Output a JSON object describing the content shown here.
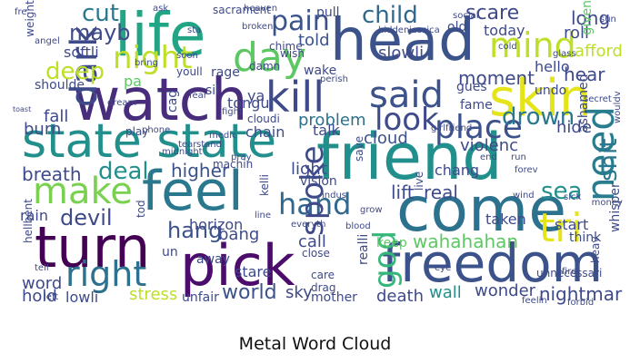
{
  "caption": "Metal Word Cloud",
  "colors": {
    "background": "#ffffff",
    "dark_purple": "#440154",
    "indigo": "#3b528b",
    "teal": "#21908d",
    "green": "#5dc863",
    "yellow": "#e5e419"
  },
  "words": [
    {
      "text": "head",
      "color": "#3b528b"
    },
    {
      "text": "friend",
      "color": "#21908d"
    },
    {
      "text": "watch",
      "color": "#472d7b"
    },
    {
      "text": "life",
      "color": "#21a585"
    },
    {
      "text": "state state",
      "color": "#21908d"
    },
    {
      "text": "come",
      "color": "#2c728e"
    },
    {
      "text": "feel",
      "color": "#2a788e"
    },
    {
      "text": "turn",
      "color": "#440154"
    },
    {
      "text": "pick",
      "color": "#4b0c6b"
    },
    {
      "text": "freedom",
      "color": "#3b528b"
    },
    {
      "text": "skin",
      "color": "#e5e419"
    },
    {
      "text": "kill",
      "color": "#3e4a89"
    },
    {
      "text": "mind",
      "color": "#bddf26"
    },
    {
      "text": "day",
      "color": "#5dc863"
    },
    {
      "text": "night",
      "color": "#bddf26"
    },
    {
      "text": "said",
      "color": "#3b528b"
    },
    {
      "text": "dark",
      "color": "#3e4a89"
    },
    {
      "text": "make",
      "color": "#7ad151"
    },
    {
      "text": "right",
      "color": "#2c728e"
    },
    {
      "text": "god",
      "color": "#35b779"
    },
    {
      "text": "need",
      "color": "#287c8e"
    },
    {
      "text": "tri",
      "color": "#e5e419"
    },
    {
      "text": "place",
      "color": "#3b528b"
    },
    {
      "text": "look",
      "color": "#3e4a89"
    },
    {
      "text": "hand",
      "color": "#31688e"
    },
    {
      "text": "spoke",
      "color": "#3e4a89"
    },
    {
      "text": "pain",
      "color": "#3b528b"
    },
    {
      "text": "child",
      "color": "#31688e"
    },
    {
      "text": "drown",
      "color": "#2a788e"
    },
    {
      "text": "cut",
      "color": "#2a788e"
    },
    {
      "text": "mayb",
      "color": "#3e4a89"
    },
    {
      "text": "deep",
      "color": "#bddf26"
    },
    {
      "text": "devil",
      "color": "#3e4a89"
    },
    {
      "text": "hang",
      "color": "#3b528b"
    },
    {
      "text": "wahahahan",
      "color": "#5dc863"
    },
    {
      "text": "sea",
      "color": "#21908d"
    },
    {
      "text": "shit",
      "color": "#2a788e"
    },
    {
      "text": "deal",
      "color": "#21908d"
    },
    {
      "text": "breath",
      "color": "#3e4a89"
    },
    {
      "text": "told",
      "color": "#3b528b"
    },
    {
      "text": "problem",
      "color": "#2c728e"
    },
    {
      "text": "cloud",
      "color": "#3b528b"
    },
    {
      "text": "light",
      "color": "#3e4a89"
    },
    {
      "text": "higher",
      "color": "#3b528b"
    },
    {
      "text": "real",
      "color": "#3e4a89"
    },
    {
      "text": "lift",
      "color": "#3e4a89"
    },
    {
      "text": "world",
      "color": "#3b528b"
    },
    {
      "text": "stress",
      "color": "#bddf26"
    },
    {
      "text": "wall",
      "color": "#21908d"
    },
    {
      "text": "wonder",
      "color": "#3e4a89"
    },
    {
      "text": "death",
      "color": "#3e4a89"
    },
    {
      "text": "nightmar",
      "color": "#3e4a89"
    },
    {
      "text": "hide",
      "color": "#3e4a89"
    },
    {
      "text": "hear",
      "color": "#3e4a89"
    },
    {
      "text": "moment",
      "color": "#3e4a89"
    },
    {
      "text": "scare",
      "color": "#3e4a89"
    },
    {
      "text": "long",
      "color": "#3e4a89"
    },
    {
      "text": "roll",
      "color": "#3e4a89"
    },
    {
      "text": "afford",
      "color": "#bddf26"
    },
    {
      "text": "given",
      "color": "#5dc863"
    },
    {
      "text": "hello",
      "color": "#3e4a89"
    },
    {
      "text": "fall",
      "color": "#3e4a89"
    },
    {
      "text": "burn",
      "color": "#3e4a89"
    },
    {
      "text": "talk",
      "color": "#3e4a89"
    },
    {
      "text": "bang",
      "color": "#3e4a89"
    },
    {
      "text": "call",
      "color": "#3e4a89"
    },
    {
      "text": "stare",
      "color": "#3e4a89"
    },
    {
      "text": "sky",
      "color": "#3e4a89"
    },
    {
      "text": "word",
      "color": "#3e4a89"
    },
    {
      "text": "hold",
      "color": "#3e4a89"
    },
    {
      "text": "lowli",
      "color": "#3e4a89"
    },
    {
      "text": "rain",
      "color": "#3e4a89"
    },
    {
      "text": "horizon",
      "color": "#3e4a89"
    },
    {
      "text": "chang",
      "color": "#3e4a89"
    },
    {
      "text": "taken",
      "color": "#3e4a89"
    },
    {
      "text": "start",
      "color": "#3e4a89"
    },
    {
      "text": "think",
      "color": "#3e4a89"
    },
    {
      "text": "whisper",
      "color": "#3e4a89"
    },
    {
      "text": "violenc",
      "color": "#3e4a89"
    },
    {
      "text": "chain",
      "color": "#3e4a89"
    },
    {
      "text": "vision",
      "color": "#3e4a89"
    },
    {
      "text": "keep",
      "color": "#5dc863"
    },
    {
      "text": "unfair",
      "color": "#3e4a89"
    },
    {
      "text": "mother",
      "color": "#3e4a89"
    },
    {
      "text": "slowli",
      "color": "#3e4a89"
    },
    {
      "text": "today",
      "color": "#3e4a89"
    },
    {
      "text": "pull",
      "color": "#3e4a89"
    },
    {
      "text": "tongu",
      "color": "#3e4a89"
    },
    {
      "text": "rage",
      "color": "#3e4a89"
    },
    {
      "text": "wake",
      "color": "#3e4a89"
    },
    {
      "text": "softli",
      "color": "#3e4a89"
    },
    {
      "text": "old",
      "color": "#3e4a89"
    },
    {
      "text": "fame",
      "color": "#3e4a89"
    },
    {
      "text": "ya",
      "color": "#3e4a89"
    },
    {
      "text": "sil",
      "color": "#3e4a89"
    },
    {
      "text": "pa",
      "color": "#5dc863"
    },
    {
      "text": "cag",
      "color": "#3e4a89"
    },
    {
      "text": "drag",
      "color": "#3e4a89"
    },
    {
      "text": "care",
      "color": "#3e4a89"
    },
    {
      "text": "close",
      "color": "#3e4a89"
    },
    {
      "text": "away",
      "color": "#3e4a89"
    },
    {
      "text": "un",
      "color": "#3e4a89"
    },
    {
      "text": "tod",
      "color": "#3e4a89"
    },
    {
      "text": "save",
      "color": "#3e4a89"
    },
    {
      "text": "realli",
      "color": "#3e4a89"
    },
    {
      "text": "sacrament",
      "color": "#3e4a89"
    },
    {
      "text": "shoulde",
      "color": "#3e4a89"
    },
    {
      "text": "weight",
      "color": "#3e4a89"
    },
    {
      "text": "undo",
      "color": "#3e4a89"
    },
    {
      "text": "gues",
      "color": "#3e4a89"
    },
    {
      "text": "ashamed",
      "color": "#3e4a89"
    },
    {
      "text": "money",
      "color": "#3e4a89"
    },
    {
      "text": "heav",
      "color": "#3e4a89"
    },
    {
      "text": "hellbent",
      "color": "#3e4a89"
    },
    {
      "text": "tell",
      "color": "#3e4a89"
    },
    {
      "text": "play",
      "color": "#3e4a89"
    },
    {
      "text": "youll",
      "color": "#3e4a89"
    },
    {
      "text": "damn",
      "color": "#3e4a89"
    },
    {
      "text": "chime",
      "color": "#3e4a89"
    },
    {
      "text": "wish",
      "color": "#3e4a89"
    },
    {
      "text": "soon",
      "color": "#3e4a89"
    },
    {
      "text": "machin",
      "color": "#3e4a89"
    },
    {
      "text": "cloudi",
      "color": "#3e4a89"
    },
    {
      "text": "live",
      "color": "#3e4a89"
    },
    {
      "text": "wouldv",
      "color": "#3e4a89"
    },
    {
      "text": "unnecessari",
      "color": "#3e4a89"
    },
    {
      "text": "sick",
      "color": "#3e4a89"
    },
    {
      "text": "forbid",
      "color": "#3e4a89"
    },
    {
      "text": "social",
      "color": "#3e4a89"
    },
    {
      "text": "hidden",
      "color": "#3e4a89"
    },
    {
      "text": "jessica",
      "color": "#3e4a89"
    },
    {
      "text": "fre",
      "color": "#3e4a89"
    },
    {
      "text": "ask",
      "color": "#3e4a89"
    },
    {
      "text": "angel",
      "color": "#3e4a89"
    },
    {
      "text": "sta",
      "color": "#3e4a89"
    },
    {
      "text": "broken",
      "color": "#3e4a89"
    },
    {
      "text": "heaven",
      "color": "#3e4a89"
    },
    {
      "text": "bring",
      "color": "#3e4a89"
    },
    {
      "text": "toast",
      "color": "#3e4a89"
    },
    {
      "text": "cold",
      "color": "#3e4a89"
    },
    {
      "text": "sun",
      "color": "#3e4a89"
    },
    {
      "text": "glass",
      "color": "#3e4a89"
    },
    {
      "text": "fight",
      "color": "#3e4a89"
    },
    {
      "text": "grow",
      "color": "#3e4a89"
    },
    {
      "text": "blood",
      "color": "#3e4a89"
    },
    {
      "text": "dream",
      "color": "#3e4a89"
    },
    {
      "text": "tear",
      "color": "#3e4a89"
    },
    {
      "text": "stand",
      "color": "#3e4a89"
    },
    {
      "text": "end",
      "color": "#3e4a89"
    },
    {
      "text": "run",
      "color": "#3e4a89"
    },
    {
      "text": "wind",
      "color": "#3e4a89"
    },
    {
      "text": "fire",
      "color": "#3e4a89"
    },
    {
      "text": "eye",
      "color": "#3e4a89"
    },
    {
      "text": "fear",
      "color": "#3e4a89"
    },
    {
      "text": "phone",
      "color": "#3e4a89"
    },
    {
      "text": "midnight",
      "color": "#3e4a89"
    },
    {
      "text": "medic",
      "color": "#3e4a89"
    },
    {
      "text": "everyth",
      "color": "#3e4a89"
    },
    {
      "text": "indus",
      "color": "#3e4a89"
    },
    {
      "text": "kelli",
      "color": "#3e4a89"
    },
    {
      "text": "perish",
      "color": "#3e4a89"
    },
    {
      "text": "pray",
      "color": "#3e4a89"
    },
    {
      "text": "line",
      "color": "#3e4a89"
    },
    {
      "text": "girlfriend",
      "color": "#3e4a89"
    },
    {
      "text": "secret",
      "color": "#3e4a89"
    },
    {
      "text": "forev",
      "color": "#3e4a89"
    },
    {
      "text": "left",
      "color": "#3e4a89"
    },
    {
      "text": "feelin",
      "color": "#3e4a89"
    },
    {
      "text": "whil",
      "color": "#3e4a89"
    },
    {
      "text": "diseas",
      "color": "#3e4a89"
    }
  ]
}
